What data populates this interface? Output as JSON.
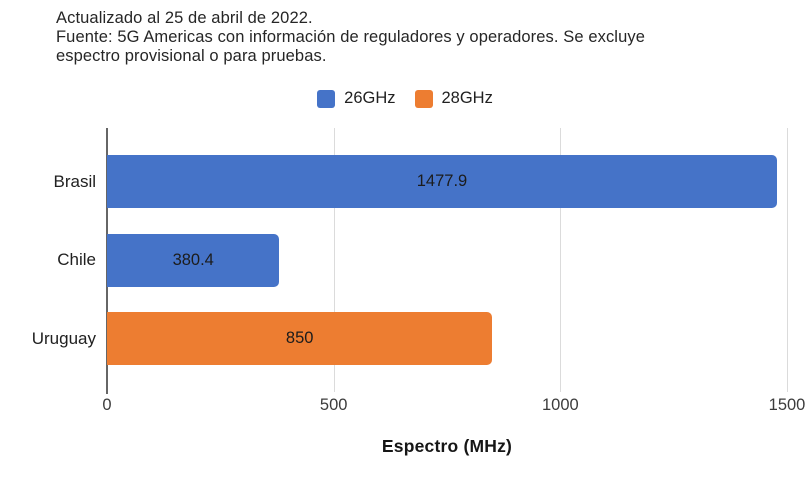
{
  "header": {
    "lines": [
      "Actualizado al 25 de abril de 2022.",
      "Fuente: 5G Americas con información de reguladores y operadores. Se excluye",
      "espectro provisional o para pruebas."
    ]
  },
  "chart_data": {
    "type": "bar",
    "orientation": "horizontal",
    "categories": [
      "Brasil",
      "Chile",
      "Uruguay"
    ],
    "series": [
      {
        "name": "26GHz",
        "color": "#4573C8",
        "values": [
          1477.9,
          380.4,
          null
        ]
      },
      {
        "name": "28GHz",
        "color": "#ED7D31",
        "values": [
          null,
          null,
          850
        ]
      }
    ],
    "bars": [
      {
        "category": "Brasil",
        "series": "26GHz",
        "value": 1477.9,
        "label": "1477.9",
        "color": "#4573C8"
      },
      {
        "category": "Chile",
        "series": "26GHz",
        "value": 380.4,
        "label": "380.4",
        "color": "#4573C8"
      },
      {
        "category": "Uruguay",
        "series": "28GHz",
        "value": 850,
        "label": "850",
        "color": "#ED7D31"
      }
    ],
    "xlabel": "Espectro (MHz)",
    "xlim": [
      0,
      1500
    ],
    "xticks": [
      0,
      500,
      1000,
      1500
    ],
    "grid": true,
    "legend_position": "top",
    "value_labels": "inside-center"
  }
}
